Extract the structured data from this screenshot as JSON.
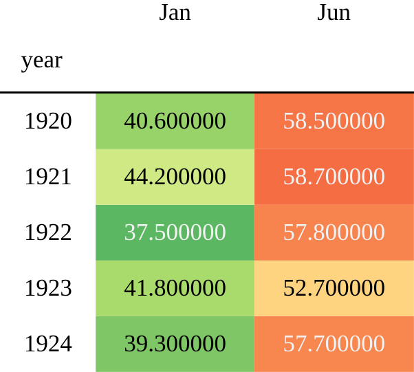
{
  "columns": [
    "Jan",
    "Jun"
  ],
  "index_name": "year",
  "rows": [
    {
      "year": "1920",
      "cells": [
        {
          "value": "40.600000",
          "bg": "#98d36a",
          "fg": "#000000"
        },
        {
          "value": "58.500000",
          "bg": "#f57547",
          "fg": "#f1f1f1"
        }
      ]
    },
    {
      "year": "1921",
      "cells": [
        {
          "value": "44.200000",
          "bg": "#cfe985",
          "fg": "#000000"
        },
        {
          "value": "58.700000",
          "bg": "#f46d43",
          "fg": "#f1f1f1"
        }
      ]
    },
    {
      "year": "1922",
      "cells": [
        {
          "value": "37.500000",
          "bg": "#5cb762",
          "fg": "#f1f1f1"
        },
        {
          "value": "57.800000",
          "bg": "#f7844e",
          "fg": "#f1f1f1"
        }
      ]
    },
    {
      "year": "1923",
      "cells": [
        {
          "value": "41.800000",
          "bg": "#a9da6c",
          "fg": "#000000"
        },
        {
          "value": "52.700000",
          "bg": "#fed481",
          "fg": "#000000"
        }
      ]
    },
    {
      "year": "1924",
      "cells": [
        {
          "value": "39.300000",
          "bg": "#7fc766",
          "fg": "#000000"
        },
        {
          "value": "57.700000",
          "bg": "#f7864f",
          "fg": "#f1f1f1"
        }
      ]
    }
  ]
}
